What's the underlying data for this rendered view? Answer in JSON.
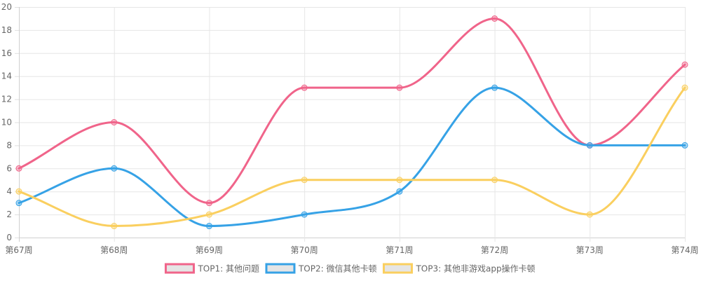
{
  "chart_data": {
    "type": "line",
    "categories": [
      "第67周",
      "第68周",
      "第69周",
      "第70周",
      "第71周",
      "第72周",
      "第73周",
      "第74周"
    ],
    "ylim": [
      0,
      20
    ],
    "y_ticks": [
      0,
      2,
      4,
      6,
      8,
      10,
      12,
      14,
      16,
      18,
      20
    ],
    "grid": true,
    "legend_position": "bottom",
    "series": [
      {
        "name": "TOP1: 其他问题",
        "color": "#f0648a",
        "values": [
          6,
          10,
          3,
          13,
          13,
          19,
          8,
          15
        ]
      },
      {
        "name": "TOP2: 微信其他卡顿",
        "color": "#36a2e6",
        "values": [
          3,
          6,
          1,
          2,
          4,
          13,
          8,
          8
        ]
      },
      {
        "name": "TOP3: 其他非游戏app操作卡顿",
        "color": "#facf5f",
        "values": [
          4,
          1,
          2,
          5,
          5,
          5,
          2,
          13
        ]
      }
    ]
  }
}
